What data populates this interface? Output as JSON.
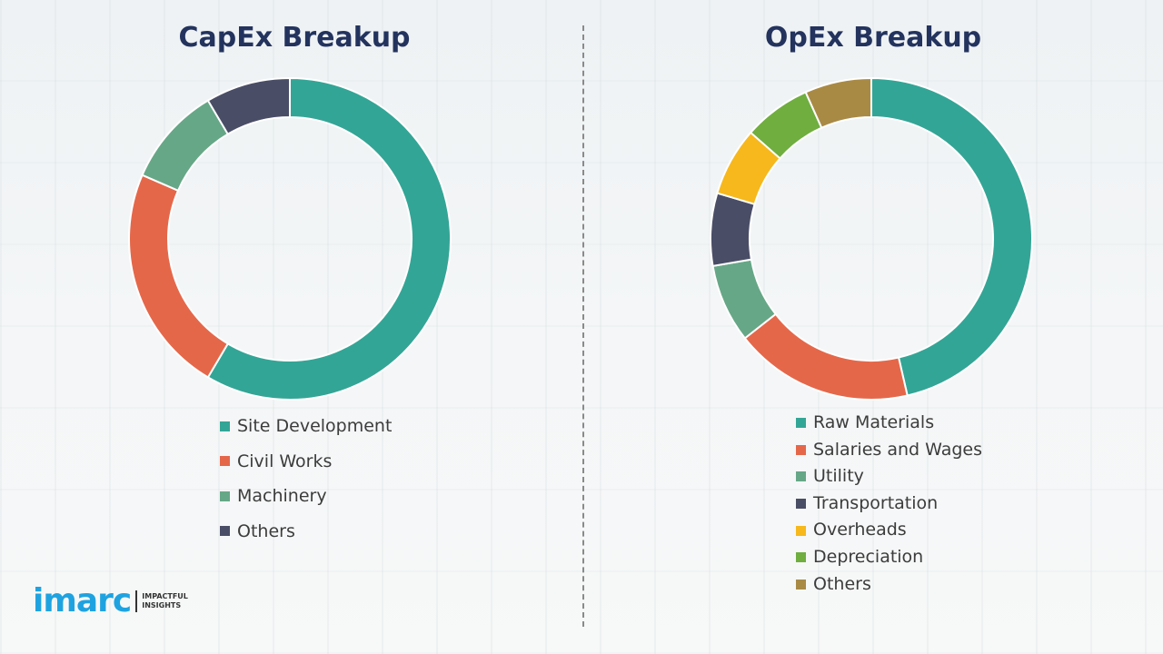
{
  "chart_data": [
    {
      "type": "pie",
      "style": "donut",
      "title": "CapEx Breakup",
      "categories": [
        "Site Development",
        "Civil Works",
        "Machinery",
        "Others"
      ],
      "values": [
        58.5,
        23,
        10,
        8.5
      ],
      "colors": [
        "#33a596",
        "#e5674a",
        "#66a787",
        "#4a4d66"
      ],
      "legend": "bottom"
    },
    {
      "type": "pie",
      "style": "donut",
      "title": "OpEx Breakup",
      "categories": [
        "Raw Materials",
        "Salaries and Wages",
        "Utility",
        "Transportation",
        "Overheads",
        "Depreciation",
        "Others"
      ],
      "values": [
        46.4,
        18,
        7.9,
        7.3,
        6.9,
        6.8,
        6.7
      ],
      "colors": [
        "#33a596",
        "#e5674a",
        "#66a787",
        "#4a4d66",
        "#f6b81c",
        "#6fae3f",
        "#a98a45"
      ],
      "legend": "bottom"
    }
  ],
  "logo": {
    "word": "imarc",
    "tagline_1": "IMPACTFUL",
    "tagline_2": "INSIGHTS",
    "color": "#1fa3e0"
  }
}
